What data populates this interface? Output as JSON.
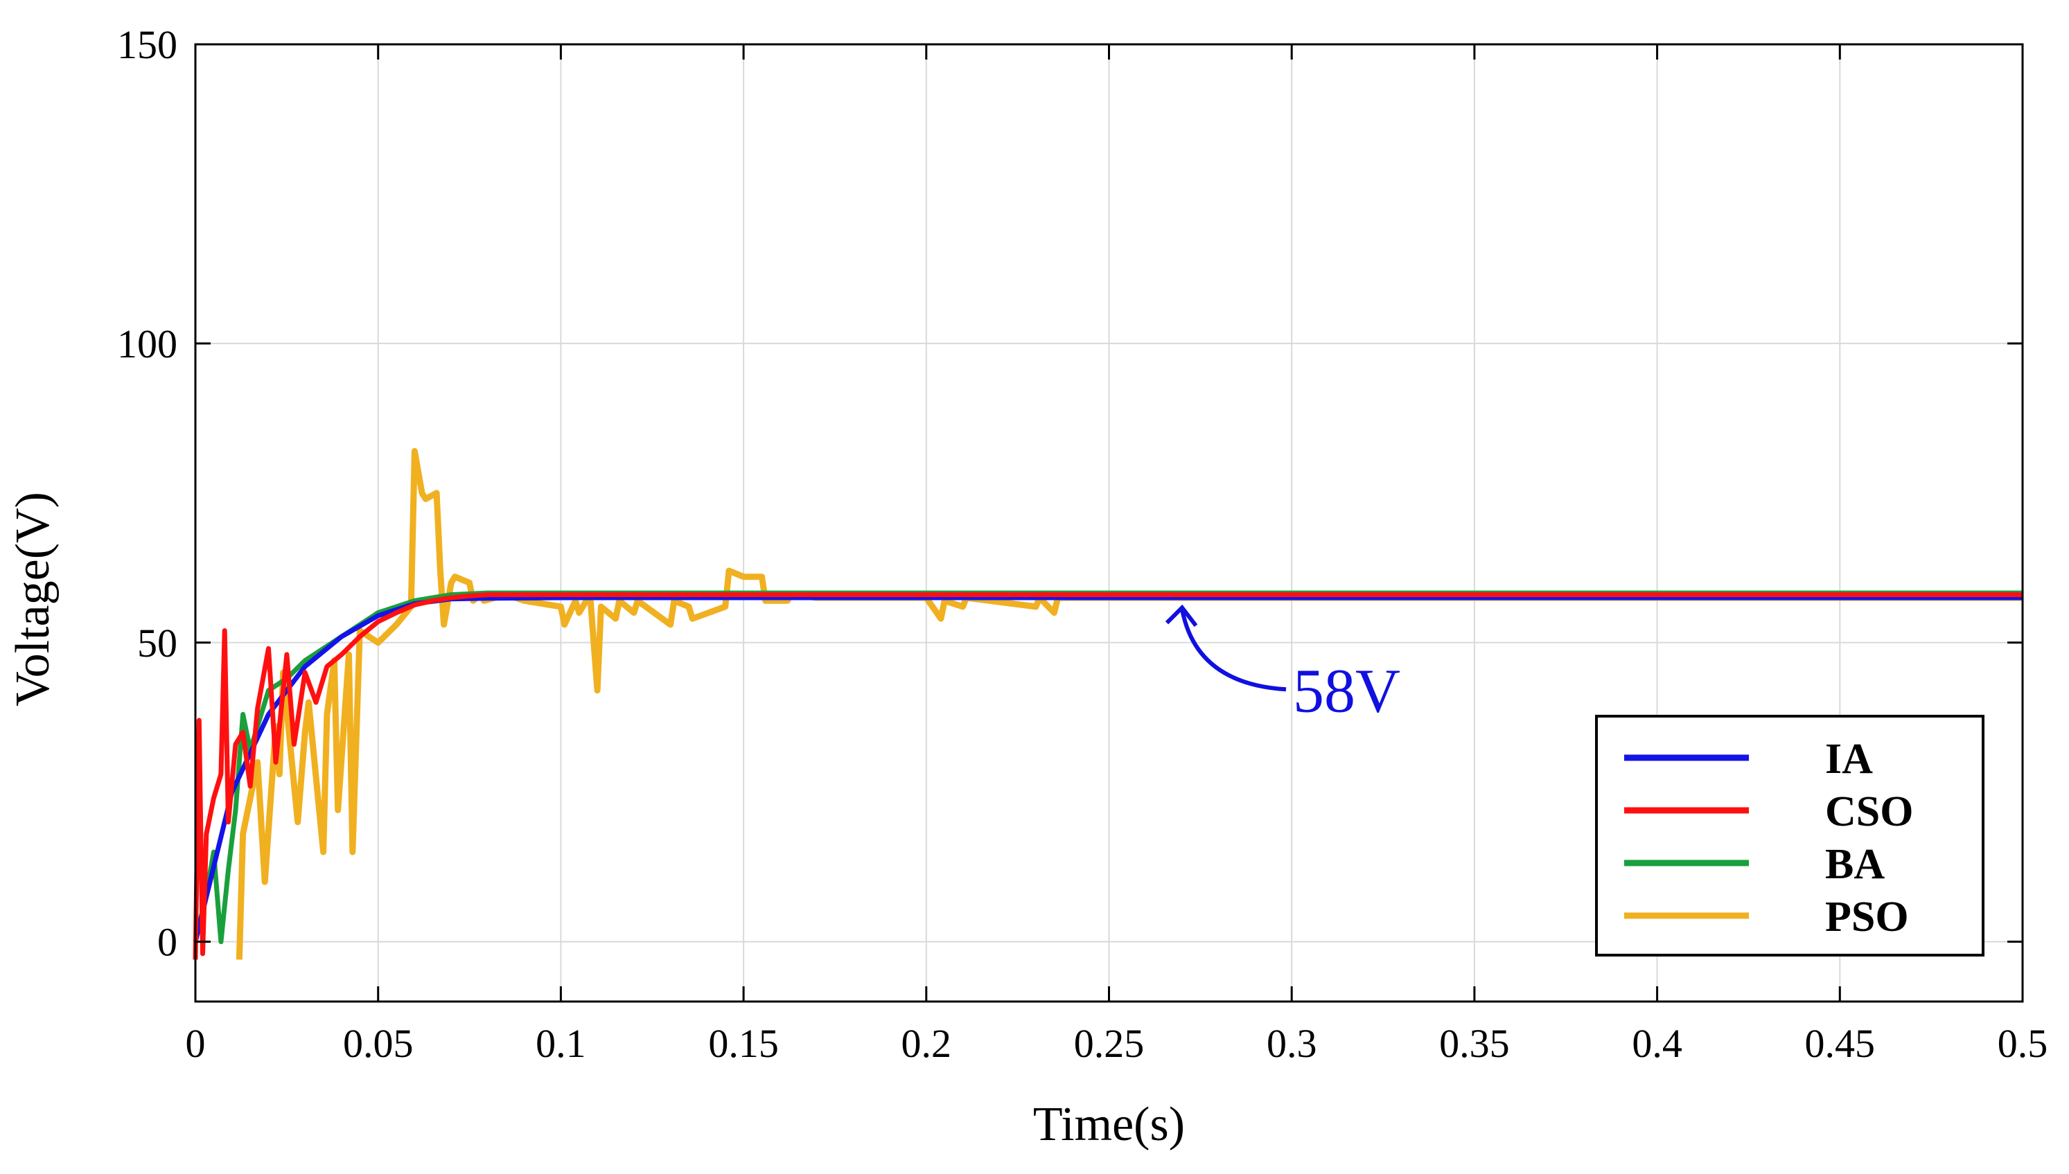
{
  "chart_data": {
    "type": "line",
    "title": "",
    "xlabel": "Time(s)",
    "ylabel": "Voltage(V)",
    "xlim": [
      0,
      0.5
    ],
    "ylim": [
      -10,
      150
    ],
    "xticks": [
      0,
      0.05,
      0.1,
      0.15,
      0.2,
      0.25,
      0.3,
      0.35,
      0.4,
      0.45,
      0.5
    ],
    "xtick_labels": [
      "0",
      "0.05",
      "0.1",
      "0.15",
      "0.2",
      "0.25",
      "0.3",
      "0.35",
      "0.4",
      "0.45",
      "0.5"
    ],
    "yticks": [
      0,
      50,
      100,
      150
    ],
    "ytick_labels": [
      "0",
      "50",
      "100",
      "150"
    ],
    "grid": true,
    "legend_position": "bottom-right",
    "annotation": {
      "text": "58V",
      "x": 0.27,
      "y": 57,
      "color": "#1010e0"
    },
    "series": [
      {
        "name": "IA",
        "color": "#1414e6",
        "x": [
          0,
          0.01,
          0.02,
          0.03,
          0.04,
          0.05,
          0.06,
          0.07,
          0.08,
          0.1,
          0.2,
          0.3,
          0.4,
          0.5
        ],
        "values": [
          0,
          25,
          38,
          46,
          51,
          54.5,
          56.5,
          57.3,
          57.4,
          57.5,
          57.5,
          57.5,
          57.5,
          57.5
        ]
      },
      {
        "name": "CSO",
        "color": "#ff1010",
        "x": [
          0,
          0.001,
          0.002,
          0.003,
          0.005,
          0.007,
          0.008,
          0.009,
          0.011,
          0.013,
          0.015,
          0.017,
          0.02,
          0.022,
          0.025,
          0.027,
          0.03,
          0.033,
          0.036,
          0.04,
          0.045,
          0.05,
          0.055,
          0.06,
          0.065,
          0.07,
          0.075,
          0.08,
          0.09,
          0.1,
          0.2,
          0.3,
          0.4,
          0.5
        ],
        "values": [
          -3,
          37,
          -2,
          18,
          24,
          28,
          52,
          20,
          33,
          35,
          26,
          39,
          49,
          30,
          48,
          33,
          45,
          40,
          46,
          48,
          51,
          53.5,
          55,
          56.3,
          57,
          57.5,
          57.8,
          58,
          58,
          58,
          58,
          58,
          58,
          58
        ]
      },
      {
        "name": "BA",
        "color": "#19a03c",
        "x": [
          0,
          0.003,
          0.005,
          0.007,
          0.009,
          0.011,
          0.013,
          0.015,
          0.02,
          0.025,
          0.03,
          0.04,
          0.05,
          0.06,
          0.07,
          0.08,
          0.1,
          0.2,
          0.3,
          0.4,
          0.5
        ],
        "values": [
          0,
          8,
          15,
          0,
          12,
          22,
          38,
          32,
          42,
          44,
          47,
          51,
          55,
          57,
          58,
          58.3,
          58.3,
          58.3,
          58.3,
          58.3,
          58.3
        ]
      },
      {
        "name": "PSO",
        "color": "#f0b020",
        "x": [
          0.012,
          0.013,
          0.017,
          0.019,
          0.022,
          0.023,
          0.024,
          0.028,
          0.03,
          0.031,
          0.035,
          0.036,
          0.038,
          0.039,
          0.042,
          0.043,
          0.045,
          0.05,
          0.055,
          0.059,
          0.06,
          0.062,
          0.063,
          0.066,
          0.067,
          0.068,
          0.07,
          0.071,
          0.075,
          0.076,
          0.078,
          0.079,
          0.085,
          0.09,
          0.1,
          0.101,
          0.104,
          0.105,
          0.107,
          0.108,
          0.11,
          0.111,
          0.115,
          0.116,
          0.12,
          0.121,
          0.13,
          0.131,
          0.135,
          0.136,
          0.145,
          0.146,
          0.15,
          0.155,
          0.156,
          0.162,
          0.163,
          0.17,
          0.2,
          0.204,
          0.205,
          0.21,
          0.211,
          0.23,
          0.231,
          0.235,
          0.236,
          0.25,
          0.3,
          0.35,
          0.4,
          0.45,
          0.5
        ],
        "values": [
          -3,
          18,
          30,
          10,
          36,
          28,
          45,
          20,
          35,
          40,
          15,
          38,
          47,
          22,
          48,
          15,
          52,
          50,
          53,
          56,
          82,
          75,
          74,
          75,
          62,
          53,
          60,
          61,
          60,
          57,
          58,
          57,
          58,
          57,
          56,
          53,
          57,
          55,
          57,
          58,
          42,
          56,
          54,
          57,
          55,
          57,
          53,
          57,
          56,
          54,
          56,
          62,
          61,
          61,
          57,
          57,
          58,
          57.5,
          57.5,
          54,
          57,
          56,
          57.5,
          56,
          57.5,
          55,
          57.5,
          57.5,
          57.5,
          57.5,
          57.5,
          57.5,
          57.5
        ]
      }
    ]
  }
}
